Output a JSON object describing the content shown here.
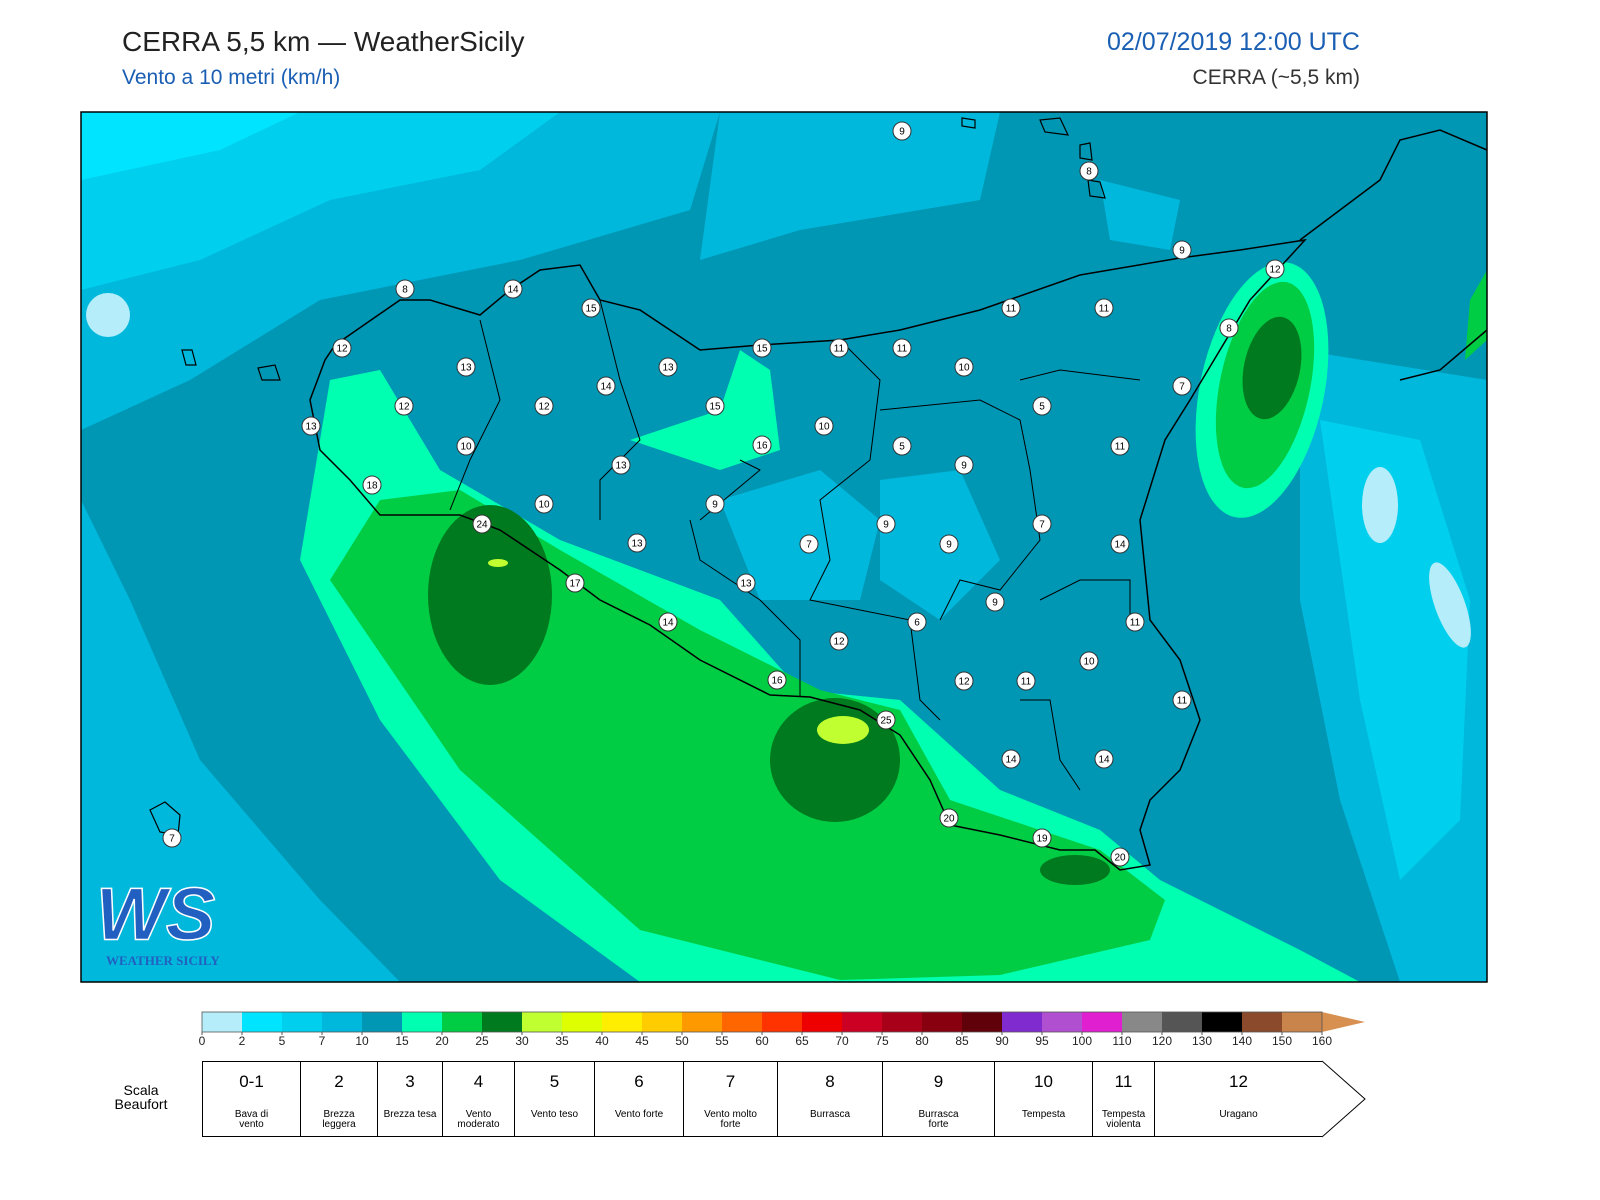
{
  "header": {
    "title": "CERRA 5,5 km — WeatherSicily",
    "subtitle": "Vento a 10 metri (km/h)",
    "date": "02/07/2019 12:00 UTC",
    "model": "CERRA (~5,5 km)"
  },
  "stations": [
    9,
    8,
    9,
    12,
    8,
    14,
    15,
    11,
    11,
    8,
    12,
    15,
    11,
    11,
    13,
    13,
    10,
    14,
    7,
    12,
    12,
    15,
    5,
    13,
    10,
    10,
    16,
    5,
    11,
    13,
    9,
    18,
    10,
    9,
    24,
    9,
    7,
    13,
    7,
    9,
    14,
    17,
    13,
    9,
    14,
    6,
    11,
    12,
    10,
    16,
    12,
    11,
    11,
    25,
    14,
    14,
    20,
    19,
    20,
    7
  ],
  "logo": {
    "letters": "WS",
    "text": "WEATHER SICILY"
  },
  "colorbar": {
    "ticks": [
      0,
      2,
      5,
      7,
      10,
      15,
      20,
      25,
      30,
      35,
      40,
      45,
      50,
      55,
      60,
      65,
      70,
      75,
      80,
      85,
      90,
      95,
      100,
      110,
      120,
      130,
      140,
      150,
      160
    ],
    "colors": [
      "#b5eefa",
      "#00e4ff",
      "#00cfee",
      "#00b8dc",
      "#0097b5",
      "#00ffb0",
      "#00cc44",
      "#007a1e",
      "#c0ff30",
      "#ddff00",
      "#ffee00",
      "#ffcc00",
      "#ff9900",
      "#ff6600",
      "#ff3300",
      "#ee0000",
      "#cc0022",
      "#a80018",
      "#880010",
      "#600008",
      "#7f2bd0",
      "#b050d0",
      "#e020d0",
      "#888888",
      "#555555",
      "#000000",
      "#8b4a2b",
      "#c8844a",
      "#d89050"
    ]
  },
  "beaufort": {
    "label": "Scala Beaufort",
    "classes": [
      {
        "force": "0-1",
        "name": "Bava di vento"
      },
      {
        "force": "2",
        "name": "Brezza leggera"
      },
      {
        "force": "3",
        "name": "Brezza tesa"
      },
      {
        "force": "4",
        "name": "Vento moderato"
      },
      {
        "force": "5",
        "name": "Vento teso"
      },
      {
        "force": "6",
        "name": "Vento forte"
      },
      {
        "force": "7",
        "name": "Vento molto forte"
      },
      {
        "force": "8",
        "name": "Burrasca"
      },
      {
        "force": "9",
        "name": "Burrasca forte"
      },
      {
        "force": "10",
        "name": "Tempesta"
      },
      {
        "force": "11",
        "name": "Tempesta violenta"
      },
      {
        "force": "12",
        "name": "Uragano"
      }
    ]
  }
}
